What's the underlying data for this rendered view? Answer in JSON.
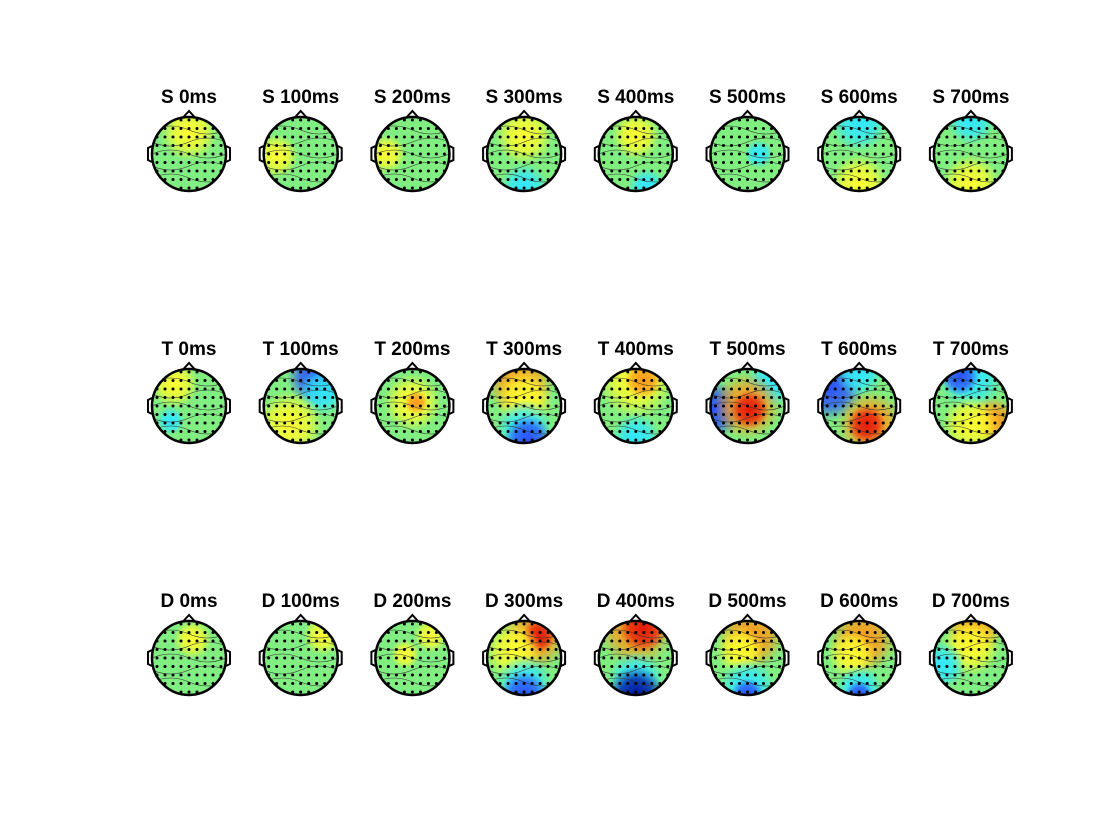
{
  "titles": [
    [
      "S 0ms",
      "S 100ms",
      "S 200ms",
      "S 300ms",
      "S 400ms",
      "S 500ms",
      "S 600ms",
      "S 700ms"
    ],
    [
      "T 0ms",
      "T 100ms",
      "T 200ms",
      "T 300ms",
      "T 400ms",
      "T 500ms",
      "T 600ms",
      "T 700ms"
    ],
    [
      "D 0ms",
      "D 100ms",
      "D 200ms",
      "D 300ms",
      "D 400ms",
      "D 500ms",
      "D 600ms",
      "D 700ms"
    ]
  ]
}
